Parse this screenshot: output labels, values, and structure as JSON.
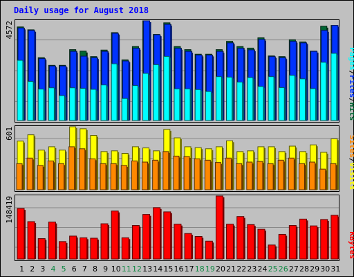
{
  "title": "Daily usage for August 2018",
  "colors": {
    "background": "#c0c0c0",
    "title": "#0000ff",
    "hits": "#006633",
    "files": "#0033ff",
    "pages": "#00ffff",
    "visits": "#ffff00",
    "sites": "#ff8800",
    "kbytes": "#ff0000",
    "weekend_label": "#118844",
    "weekday_label": "#000000"
  },
  "chart_data": [
    {
      "type": "bar",
      "panel": "hits-files-pages",
      "y_max_label": "4572",
      "ylim": [
        0,
        4572
      ],
      "legend": [
        "Pages",
        "/",
        "Files",
        "/",
        "Hits"
      ],
      "categories": [
        "1",
        "2",
        "3",
        "4",
        "5",
        "6",
        "7",
        "8",
        "9",
        "10",
        "11",
        "12",
        "13",
        "14",
        "15",
        "16",
        "17",
        "18",
        "19",
        "20",
        "21",
        "22",
        "23",
        "24",
        "25",
        "26",
        "27",
        "28",
        "29",
        "30",
        "31"
      ],
      "series": [
        {
          "name": "Hits",
          "values": [
            4290,
            4160,
            2880,
            2530,
            2530,
            3250,
            3180,
            2930,
            3230,
            4030,
            2780,
            3390,
            4572,
            3950,
            4480,
            3390,
            3250,
            3040,
            3040,
            3250,
            3630,
            3390,
            3320,
            3790,
            2960,
            2930,
            3700,
            3600,
            3180,
            4320,
            4360
          ]
        },
        {
          "name": "Files",
          "values": [
            4240,
            4130,
            2840,
            2500,
            2500,
            3170,
            2950,
            2880,
            3170,
            4000,
            2730,
            3310,
            4572,
            3930,
            4410,
            3310,
            3170,
            3000,
            3000,
            3170,
            3560,
            3310,
            3240,
            3720,
            2930,
            2880,
            3630,
            3560,
            3170,
            4130,
            4360
          ]
        },
        {
          "name": "Pages",
          "values": [
            2760,
            1790,
            1440,
            1500,
            1140,
            1500,
            1470,
            1430,
            1630,
            2600,
            1010,
            1600,
            2160,
            2560,
            2940,
            1450,
            1450,
            1420,
            1330,
            2010,
            1990,
            1760,
            1970,
            1560,
            2010,
            1510,
            2070,
            1910,
            1460,
            2670,
            3080
          ]
        }
      ]
    },
    {
      "type": "bar",
      "panel": "visits-sites",
      "y_max_label": "601",
      "ylim": [
        0,
        601
      ],
      "legend": [
        "Sites",
        "/",
        "Visits"
      ],
      "categories": [
        "1",
        "2",
        "3",
        "4",
        "5",
        "6",
        "7",
        "8",
        "9",
        "10",
        "11",
        "12",
        "13",
        "14",
        "15",
        "16",
        "17",
        "18",
        "19",
        "20",
        "21",
        "22",
        "23",
        "24",
        "25",
        "26",
        "27",
        "28",
        "29",
        "30",
        "31"
      ],
      "series": [
        {
          "name": "Visits",
          "values": [
            464,
            524,
            378,
            410,
            378,
            601,
            582,
            518,
            364,
            371,
            347,
            410,
            399,
            371,
            575,
            495,
            410,
            401,
            391,
            410,
            467,
            364,
            371,
            410,
            410,
            364,
            416,
            364,
            428,
            357,
            486
          ]
        },
        {
          "name": "Sites",
          "values": [
            249,
            302,
            232,
            275,
            249,
            410,
            391,
            295,
            249,
            249,
            232,
            275,
            264,
            282,
            364,
            321,
            317,
            295,
            282,
            260,
            302,
            249,
            264,
            270,
            249,
            282,
            302,
            249,
            264,
            197,
            249
          ]
        }
      ]
    },
    {
      "type": "bar",
      "panel": "kbytes",
      "y_max_label": "148419",
      "ylim": [
        0,
        148419
      ],
      "legend": [
        "KBytes"
      ],
      "categories": [
        "1",
        "2",
        "3",
        "4",
        "5",
        "6",
        "7",
        "8",
        "9",
        "10",
        "11",
        "12",
        "13",
        "14",
        "15",
        "16",
        "17",
        "18",
        "19",
        "20",
        "21",
        "22",
        "23",
        "24",
        "25",
        "26",
        "27",
        "28",
        "29",
        "30",
        "31"
      ],
      "series": [
        {
          "name": "KBytes",
          "values": [
            119000,
            88000,
            48000,
            87000,
            41000,
            54000,
            50000,
            49000,
            83000,
            113000,
            50000,
            79000,
            105000,
            121000,
            111000,
            82000,
            60000,
            53000,
            42000,
            148419,
            82000,
            100000,
            81000,
            70000,
            33000,
            58000,
            79000,
            94000,
            78000,
            93000,
            103000
          ]
        }
      ]
    }
  ],
  "x_axis": {
    "labels": [
      "1",
      "2",
      "3",
      "4",
      "5",
      "6",
      "7",
      "8",
      "9",
      "10",
      "11",
      "12",
      "13",
      "14",
      "15",
      "16",
      "17",
      "18",
      "19",
      "20",
      "21",
      "22",
      "23",
      "24",
      "25",
      "26",
      "27",
      "28",
      "29",
      "30",
      "31"
    ],
    "weekend": [
      4,
      5,
      11,
      12,
      18,
      19,
      25,
      26
    ]
  }
}
